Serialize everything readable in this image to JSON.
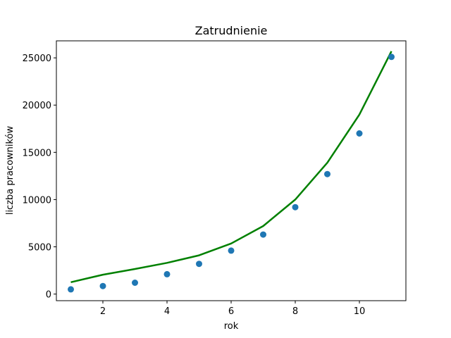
{
  "chart_data": {
    "type": "scatter",
    "title": "Zatrudnienie",
    "xlabel": "rok",
    "ylabel": "liczba pracowników",
    "xlim": [
      0.55,
      11.45
    ],
    "ylim": [
      -700,
      26800
    ],
    "xticks": [
      2,
      4,
      6,
      8,
      10
    ],
    "yticks": [
      0,
      5000,
      10000,
      15000,
      20000,
      25000
    ],
    "grid": false,
    "series": [
      {
        "kind": "scatter",
        "color": "#1f77b4",
        "x": [
          1,
          2,
          3,
          4,
          5,
          6,
          7,
          8,
          9,
          10,
          11
        ],
        "y": [
          500,
          850,
          1200,
          2100,
          3200,
          4600,
          6300,
          9200,
          12700,
          17000,
          25100
        ]
      },
      {
        "kind": "line",
        "color": "#008000",
        "x": [
          1,
          2,
          3,
          4,
          5,
          6,
          7,
          8,
          9,
          10,
          11
        ],
        "y": [
          1250,
          2050,
          2650,
          3300,
          4100,
          5350,
          7200,
          10000,
          13900,
          19000,
          25700
        ]
      }
    ]
  }
}
